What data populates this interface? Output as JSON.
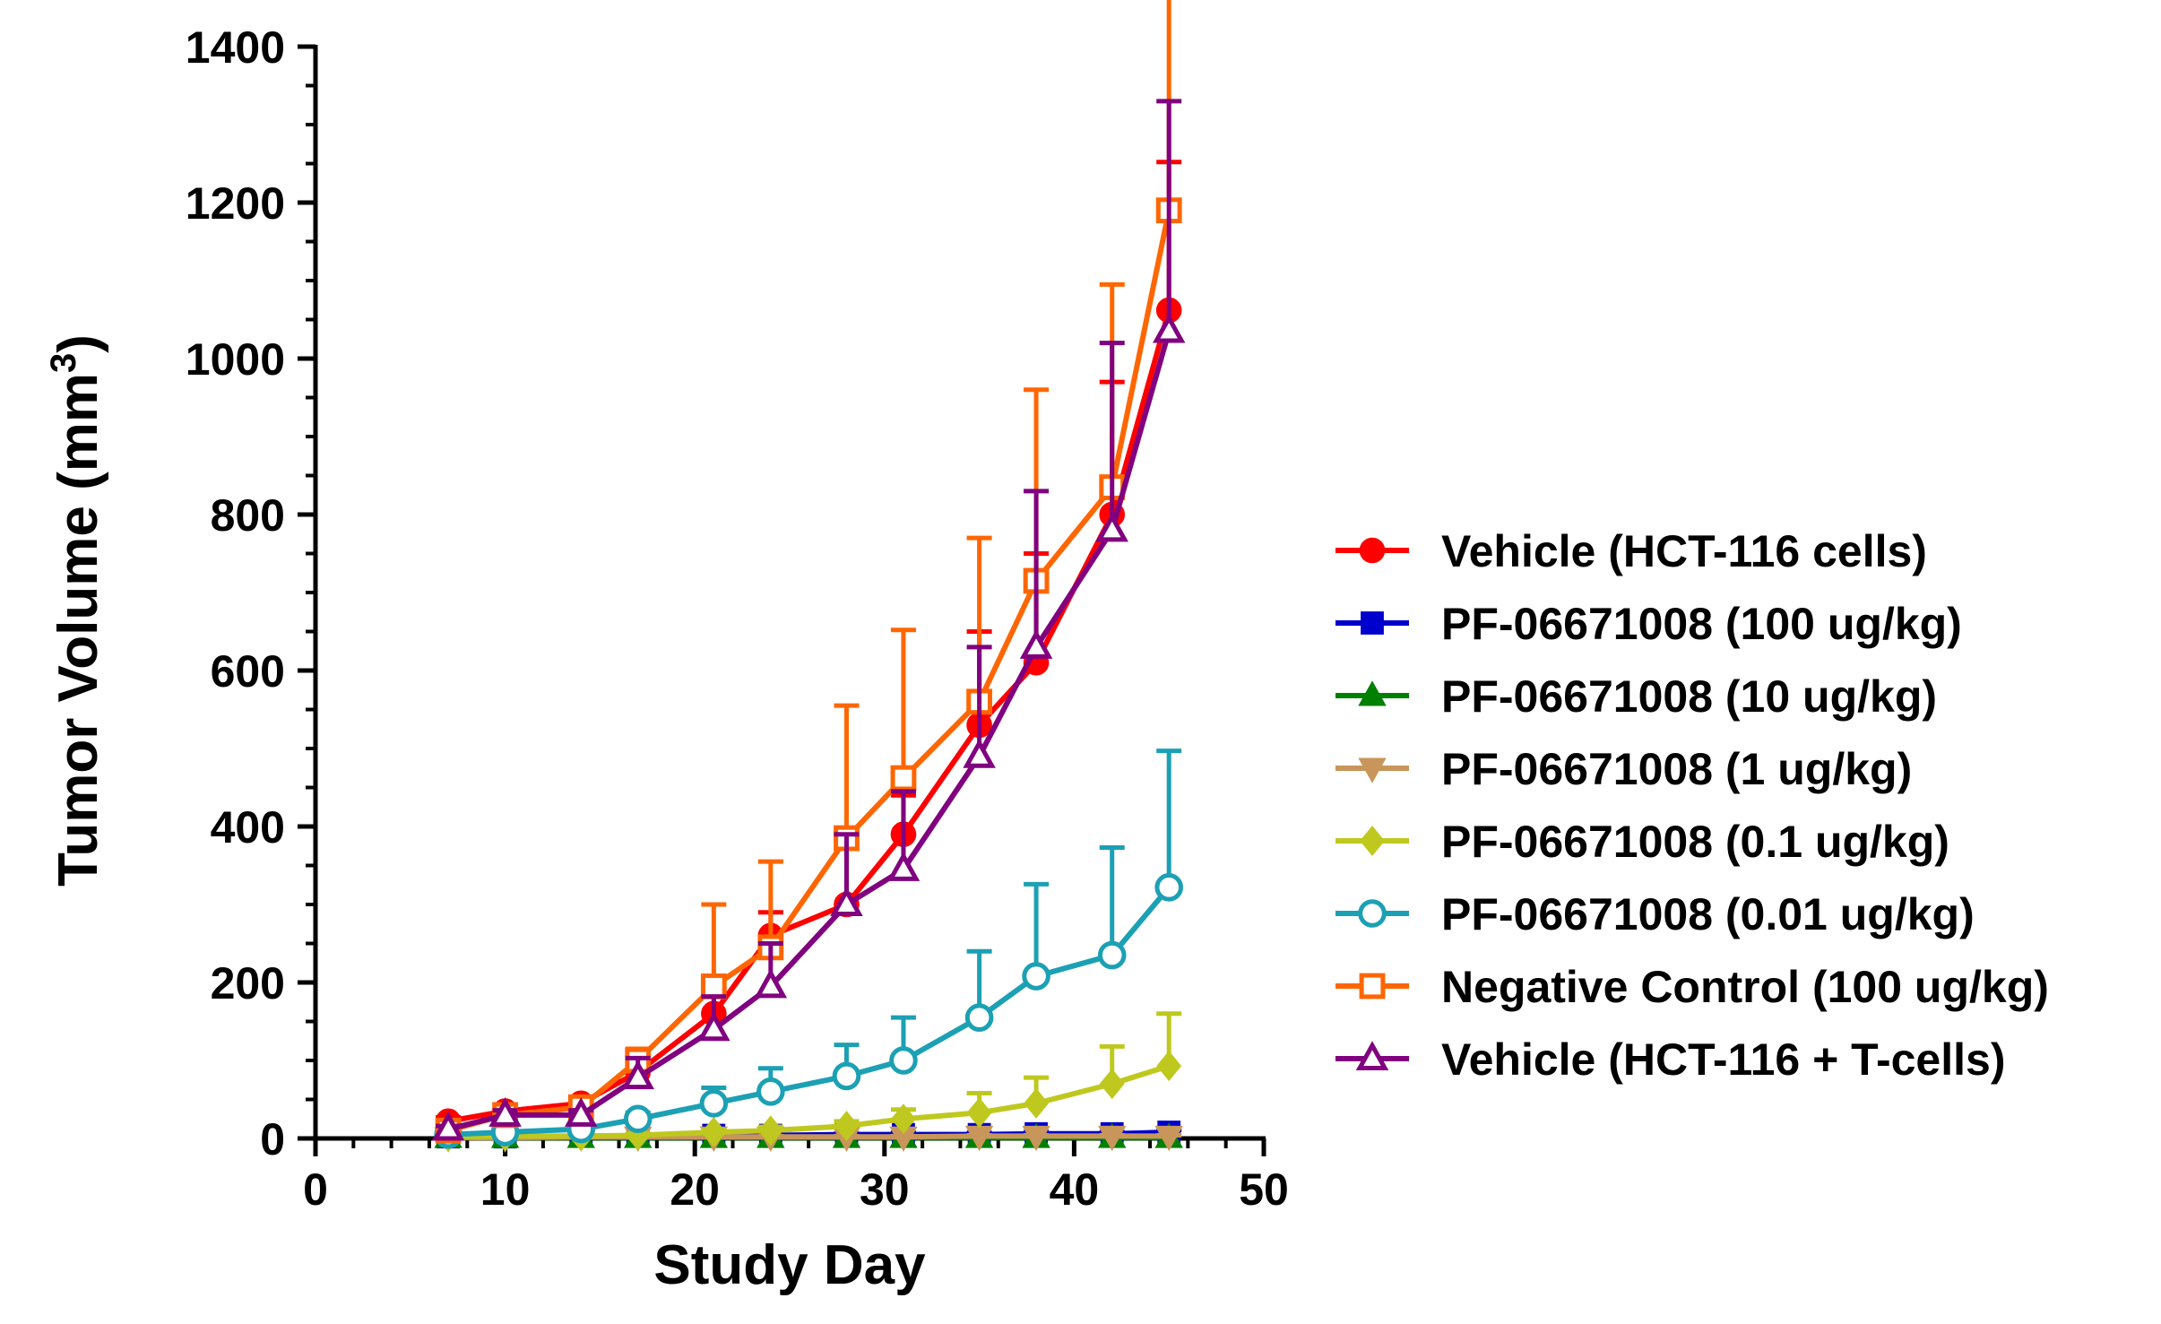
{
  "chart_data": {
    "type": "line",
    "title": "",
    "xlabel": "Study Day",
    "ylabel_main": "Tumor Volume (mm",
    "ylabel_sup": "3",
    "ylabel_close": ")",
    "xlim": [
      0,
      50
    ],
    "ylim": [
      0,
      1400
    ],
    "xticks": [
      0,
      10,
      20,
      30,
      40,
      50
    ],
    "yticks": [
      0,
      200,
      400,
      600,
      800,
      1000,
      1200,
      1400
    ],
    "x_minor_step": 2,
    "y_minor_step": 50,
    "grid": false,
    "legend_position": "right",
    "series": [
      {
        "name": "Vehicle (HCT-116 cells)",
        "color": "#ff0000",
        "marker": "circle-filled",
        "x": [
          7,
          10,
          14,
          17,
          21,
          24,
          28,
          31,
          35,
          38,
          42,
          45
        ],
        "values": [
          22,
          35,
          45,
          85,
          160,
          260,
          300,
          390,
          530,
          610,
          800,
          1062
        ],
        "err": [
          5,
          7,
          8,
          15,
          25,
          30,
          80,
          50,
          120,
          140,
          170,
          190
        ]
      },
      {
        "name": "PF-06671008 (100 ug/kg)",
        "color": "#0000cc",
        "marker": "square-filled",
        "x": [
          7,
          10,
          14,
          17,
          21,
          24,
          28,
          31,
          35,
          38,
          42,
          45
        ],
        "values": [
          2,
          2,
          3,
          3,
          4,
          4,
          5,
          5,
          5,
          6,
          6,
          8
        ],
        "err": [
          1,
          1,
          1,
          1,
          1,
          1,
          1,
          2,
          2,
          2,
          2,
          3
        ]
      },
      {
        "name": "PF-06671008 (10 ug/kg)",
        "color": "#008000",
        "marker": "triangle-up-filled",
        "x": [
          7,
          10,
          14,
          17,
          21,
          24,
          28,
          31,
          35,
          38,
          42,
          45
        ],
        "values": [
          1,
          1,
          1,
          1,
          1,
          1,
          1,
          1,
          1,
          1,
          1,
          1
        ],
        "err": [
          0,
          0,
          0,
          0,
          0,
          0,
          0,
          0,
          0,
          0,
          0,
          0
        ]
      },
      {
        "name": "PF-06671008 (1 ug/kg)",
        "color": "#c8965a",
        "marker": "triangle-down-filled",
        "x": [
          7,
          10,
          14,
          17,
          21,
          24,
          28,
          31,
          35,
          38,
          42,
          45
        ],
        "values": [
          1,
          1,
          2,
          2,
          2,
          2,
          2,
          2,
          3,
          3,
          3,
          3
        ],
        "err": [
          0,
          0,
          1,
          1,
          1,
          1,
          1,
          1,
          1,
          1,
          1,
          1
        ]
      },
      {
        "name": "PF-06671008 (0.1 ug/kg)",
        "color": "#bfc81e",
        "marker": "diamond-filled",
        "x": [
          7,
          10,
          14,
          17,
          21,
          24,
          28,
          31,
          35,
          38,
          42,
          45
        ],
        "values": [
          2,
          3,
          3,
          4,
          8,
          10,
          16,
          25,
          33,
          45,
          70,
          93
        ],
        "err": [
          1,
          1,
          1,
          2,
          3,
          5,
          6,
          12,
          25,
          33,
          48,
          67
        ]
      },
      {
        "name": "PF-06671008 (0.01 ug/kg)",
        "color": "#1ca0b4",
        "marker": "circle-open",
        "x": [
          7,
          10,
          14,
          17,
          21,
          24,
          28,
          31,
          35,
          38,
          42,
          45
        ],
        "values": [
          5,
          8,
          12,
          25,
          45,
          60,
          80,
          100,
          155,
          208,
          235,
          322
        ],
        "err": [
          2,
          3,
          4,
          8,
          20,
          30,
          40,
          55,
          85,
          118,
          138,
          175
        ]
      },
      {
        "name": "Negative Control (100 ug/kg)",
        "color": "#ff6600",
        "marker": "square-open",
        "x": [
          7,
          10,
          14,
          17,
          21,
          24,
          28,
          31,
          35,
          38,
          42,
          45
        ],
        "values": [
          10,
          30,
          40,
          100,
          195,
          245,
          385,
          462,
          560,
          715,
          835,
          1190
        ],
        "err": [
          4,
          6,
          8,
          15,
          105,
          110,
          170,
          190,
          210,
          245,
          260,
          355
        ]
      },
      {
        "name": "Vehicle (HCT-116 + T-cells)",
        "color": "#80007f",
        "marker": "triangle-up-open",
        "x": [
          7,
          10,
          14,
          17,
          21,
          24,
          28,
          31,
          35,
          38,
          42,
          45
        ],
        "values": [
          12,
          30,
          30,
          78,
          140,
          195,
          300,
          345,
          490,
          630,
          780,
          1035
        ],
        "err": [
          4,
          6,
          6,
          25,
          42,
          55,
          90,
          100,
          140,
          200,
          240,
          295
        ]
      }
    ]
  }
}
